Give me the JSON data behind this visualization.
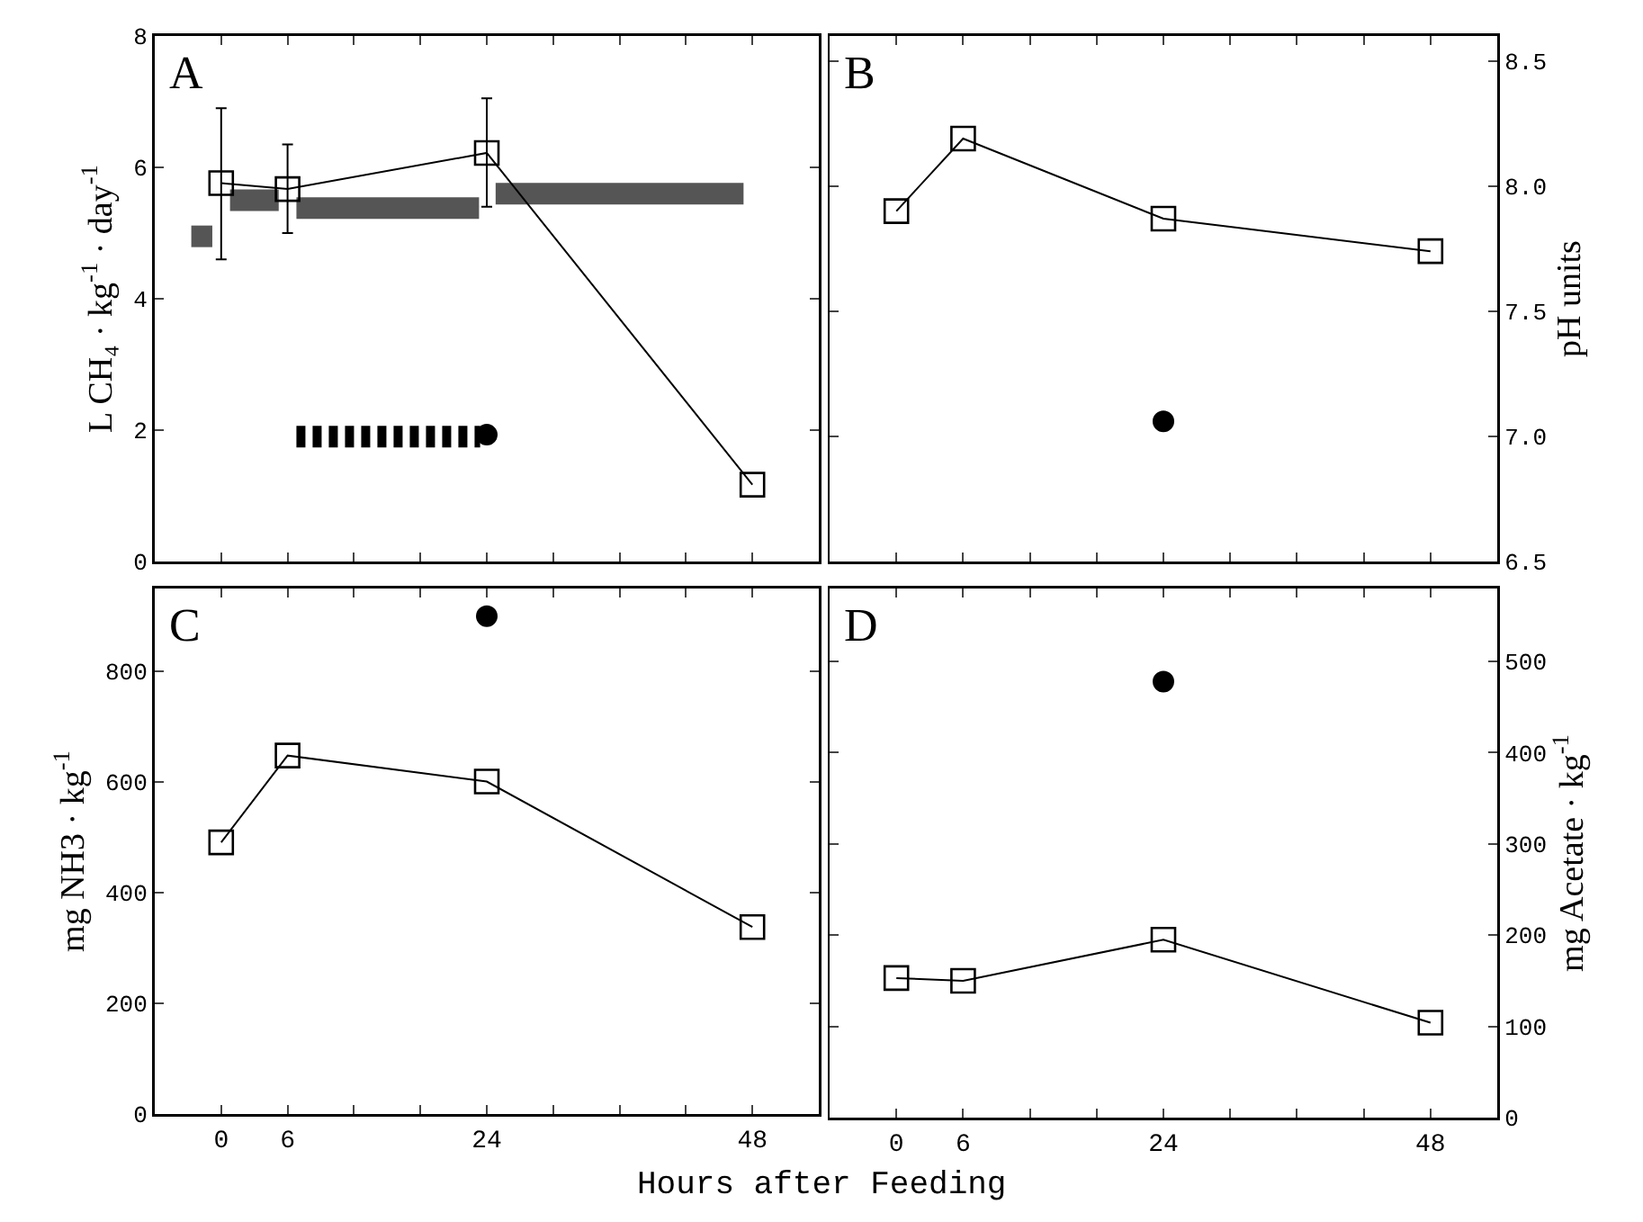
{
  "chart_data": [
    {
      "type": "line",
      "ylabel": "L CH₄ · kg$^{-1}$ · day$^{-1}$",
      "annotations": [
        "A"
      ],
      "xlim": [
        -6,
        54
      ],
      "xticks": [
        {
          "value": -6,
          "label": null
        },
        0,
        6,
        {
          "value": 12,
          "label": null
        },
        {
          "value": 18,
          "label": null
        },
        24,
        {
          "value": 30,
          "label": null
        },
        {
          "value": 36,
          "label": null
        },
        {
          "value": 42,
          "label": null
        },
        48,
        {
          "value": 54,
          "label": null
        }
      ],
      "ylim": [
        0,
        8
      ],
      "yticks": [
        0,
        2,
        4,
        6,
        8
      ],
      "tick_labels": "y",
      "series": [
        {
          "type": "line",
          "color": "#555555",
          "marker": "none",
          "line_style": "solid",
          "x": [
            -2.7,
            -0.8
          ],
          "values": [
            4.95,
            4.95
          ]
        },
        {
          "type": "line",
          "color": "#555555",
          "marker": "none",
          "line_style": "solid",
          "x": [
            0.8,
            5.2
          ],
          "values": [
            5.5,
            5.5
          ]
        },
        {
          "type": "line",
          "color": "#555555",
          "marker": "none",
          "line_style": "solid",
          "x": [
            6.8,
            23.3
          ],
          "values": [
            5.38,
            5.38
          ]
        },
        {
          "type": "line",
          "color": "#555555",
          "marker": "none",
          "line_style": "solid",
          "x": [
            24.8,
            47.2
          ],
          "values": [
            5.6,
            5.6
          ]
        },
        {
          "type": "line",
          "color": "#000000",
          "marker": "none",
          "line_style": "dashed",
          "x": [
            6.8,
            23.4
          ],
          "values": [
            1.9,
            1.9
          ]
        },
        {
          "type": "line",
          "color": "#000000",
          "marker": "square",
          "line_style": "solid",
          "x": [
            0,
            6,
            24,
            48
          ],
          "values": [
            5.76,
            5.67,
            6.22,
            1.17
          ],
          "errors": [
            [
              4.6,
              6.9
            ],
            [
              5.0,
              6.35
            ],
            [
              5.4,
              7.05
            ],
            null
          ]
        },
        {
          "type": "scatter",
          "color": "#000000",
          "marker": "circle",
          "x": [
            24
          ],
          "values": [
            1.93
          ]
        }
      ]
    },
    {
      "type": "line",
      "y2label": "pH units",
      "annotations": [
        "B"
      ],
      "xlim": [
        -6,
        54
      ],
      "xticks": [
        {
          "value": -6,
          "label": null
        },
        0,
        6,
        {
          "value": 12,
          "label": null
        },
        {
          "value": 18,
          "label": null
        },
        24,
        {
          "value": 30,
          "label": null
        },
        {
          "value": 36,
          "label": null
        },
        {
          "value": 42,
          "label": null
        },
        48,
        {
          "value": 54,
          "label": null
        }
      ],
      "y2lim": [
        6.5,
        8.6
      ],
      "y2ticks": [
        6.5,
        {
          "value": 7,
          "label": "7.0"
        },
        7.5,
        {
          "value": 8,
          "label": "8.0"
        },
        8.5
      ],
      "tick_labels": "y",
      "series": [
        {
          "type": "line",
          "axis": "y2",
          "color": "#000000",
          "marker": "square",
          "line_style": "solid",
          "x": [
            0,
            6,
            24,
            48
          ],
          "values": [
            7.9,
            8.19,
            7.87,
            7.74
          ]
        },
        {
          "type": "scatter",
          "axis": "y2",
          "color": "#000000",
          "marker": "circle",
          "x": [
            24
          ],
          "values": [
            7.06
          ]
        }
      ]
    },
    {
      "type": "line",
      "ylabel": "mg NH3 · kg$^{-1}$",
      "xlabel": "Hours after Feeding",
      "annotations": [
        "C"
      ],
      "xlim": [
        -6,
        54
      ],
      "xticks": [
        {
          "value": -6,
          "label": null
        },
        0,
        6,
        {
          "value": 12,
          "label": null
        },
        {
          "value": 18,
          "label": null
        },
        24,
        {
          "value": 30,
          "label": null
        },
        {
          "value": 36,
          "label": null
        },
        {
          "value": 42,
          "label": null
        },
        48,
        {
          "value": 54,
          "label": null
        }
      ],
      "ylim": [
        0,
        950
      ],
      "yticks": [
        0,
        200,
        400,
        600,
        800
      ],
      "series": [
        {
          "type": "line",
          "color": "#000000",
          "marker": "square",
          "line_style": "solid",
          "x": [
            0,
            6,
            24,
            48
          ],
          "values": [
            491,
            648,
            601,
            338
          ]
        },
        {
          "type": "scatter",
          "color": "#000000",
          "marker": "circle",
          "x": [
            24
          ],
          "values": [
            900
          ]
        }
      ]
    },
    {
      "type": "line",
      "y2label": "mg Acetate · kg$^{-1}$",
      "annotations": [
        "D"
      ],
      "xlim": [
        -6,
        54
      ],
      "xticks": [
        {
          "value": -6,
          "label": null
        },
        0,
        6,
        {
          "value": 12,
          "label": null
        },
        {
          "value": 18,
          "label": null
        },
        24,
        {
          "value": 30,
          "label": null
        },
        {
          "value": 36,
          "label": null
        },
        {
          "value": 42,
          "label": null
        },
        48,
        {
          "value": 54,
          "label": null
        }
      ],
      "y2lim": [
        0,
        580
      ],
      "y2ticks": [
        0,
        100,
        200,
        300,
        400,
        500
      ],
      "series": [
        {
          "type": "line",
          "axis": "y2",
          "color": "#000000",
          "marker": "square",
          "line_style": "solid",
          "x": [
            0,
            6,
            24,
            48
          ],
          "values": [
            153,
            150,
            195,
            104
          ]
        },
        {
          "type": "scatter",
          "axis": "y2",
          "color": "#000000",
          "marker": "circle",
          "x": [
            24
          ],
          "values": [
            478
          ]
        }
      ]
    }
  ]
}
